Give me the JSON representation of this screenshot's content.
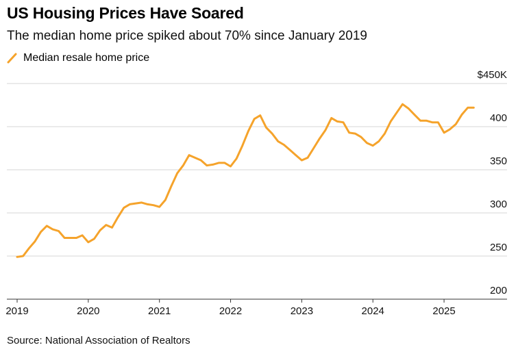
{
  "title": "US Housing Prices Have Soared",
  "subtitle": "The median home price spiked about 70% since January 2019",
  "source": "Source: National Association of Realtors",
  "chart_data": {
    "type": "line",
    "series": [
      {
        "name": "Median resale home price",
        "color": "#f5a32b",
        "x": [
          "2019-01",
          "2019-02",
          "2019-03",
          "2019-04",
          "2019-05",
          "2019-06",
          "2019-07",
          "2019-08",
          "2019-09",
          "2019-10",
          "2019-11",
          "2019-12",
          "2020-01",
          "2020-02",
          "2020-03",
          "2020-04",
          "2020-05",
          "2020-06",
          "2020-07",
          "2020-08",
          "2020-09",
          "2020-10",
          "2020-11",
          "2020-12",
          "2021-01",
          "2021-02",
          "2021-03",
          "2021-04",
          "2021-05",
          "2021-06",
          "2021-07",
          "2021-08",
          "2021-09",
          "2021-10",
          "2021-11",
          "2021-12",
          "2022-01",
          "2022-02",
          "2022-03",
          "2022-04",
          "2022-05",
          "2022-06",
          "2022-07",
          "2022-08",
          "2022-09",
          "2022-10",
          "2022-11",
          "2022-12",
          "2023-01",
          "2023-02",
          "2023-03",
          "2023-04",
          "2023-05",
          "2023-06",
          "2023-07",
          "2023-08",
          "2023-09",
          "2023-10",
          "2023-11",
          "2023-12",
          "2024-01",
          "2024-02",
          "2024-03",
          "2024-04",
          "2024-05",
          "2024-06",
          "2024-07",
          "2024-08",
          "2024-09",
          "2024-10",
          "2024-11",
          "2024-12",
          "2025-01",
          "2025-02",
          "2025-03",
          "2025-04",
          "2025-05",
          "2025-06"
        ],
        "values": [
          249,
          250,
          259,
          267,
          278,
          285,
          281,
          279,
          271,
          271,
          271,
          274,
          266,
          270,
          280,
          286,
          283,
          295,
          306,
          310,
          311,
          312,
          310,
          309,
          307,
          315,
          331,
          346,
          355,
          367,
          364,
          361,
          355,
          356,
          358,
          358,
          354,
          363,
          378,
          395,
          409,
          413,
          399,
          392,
          383,
          379,
          373,
          367,
          361,
          364,
          375,
          386,
          396,
          410,
          406,
          405,
          393,
          392,
          388,
          381,
          378,
          383,
          392,
          406,
          416,
          426,
          421,
          414,
          407,
          407,
          405,
          405,
          393,
          397,
          403,
          414,
          422,
          422
        ]
      }
    ],
    "x_ticks": [
      "2019",
      "2020",
      "2021",
      "2022",
      "2023",
      "2024",
      "2025"
    ],
    "y_ticks": [
      "200",
      "250",
      "300",
      "350",
      "400",
      "$450K"
    ],
    "y_tick_values": [
      200,
      250,
      300,
      350,
      400,
      450
    ],
    "ylim": [
      200,
      450
    ],
    "xlim": [
      "2019-01",
      "2025-07"
    ],
    "xlabel": "",
    "ylabel": "",
    "grid": "horizontal",
    "legend": "top-left"
  }
}
